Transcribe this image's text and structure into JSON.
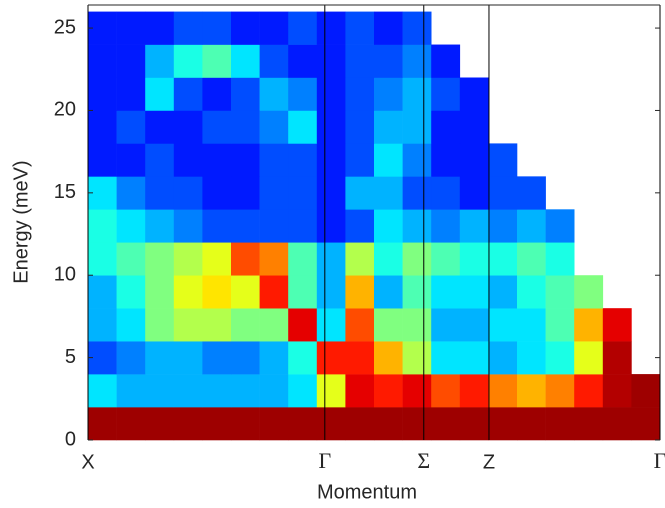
{
  "chart_data": {
    "type": "heatmap",
    "colormap": "jet",
    "zlim": [
      0,
      1
    ],
    "x_label": "Momentum",
    "y_label": "Energy (meV)",
    "xlim": [
      0,
      1
    ],
    "ylim": [
      0,
      26.4
    ],
    "xticks": [
      {
        "value": 0,
        "label": "X"
      },
      {
        "value": 0.414,
        "label": "Γ"
      },
      {
        "value": 0.587,
        "label": "Σ"
      },
      {
        "value": 0.701,
        "label": "Z"
      },
      {
        "value": 1,
        "label": "Γ"
      }
    ],
    "yticks": [
      0,
      5,
      10,
      15,
      20,
      25
    ],
    "x_bins": [
      0,
      0.05,
      0.1,
      0.15,
      0.2,
      0.25,
      0.3,
      0.35,
      0.4,
      0.45,
      0.5,
      0.55,
      0.6,
      0.65,
      0.7,
      0.75,
      0.8,
      0.85,
      0.9,
      0.95,
      1
    ],
    "y_bins": [
      0,
      2,
      4,
      6,
      8,
      10,
      12,
      14,
      16,
      18,
      20,
      22,
      24,
      26
    ],
    "z": [
      [
        0.97,
        0.97,
        0.97,
        0.97,
        0.97,
        0.97,
        0.97,
        0.97,
        0.97,
        0.97,
        0.97,
        0.97,
        0.97,
        0.97,
        0.97,
        0.97,
        0.97,
        0.97,
        0.97,
        0.97
      ],
      [
        0.35,
        0.3,
        0.3,
        0.3,
        0.3,
        0.3,
        0.3,
        0.35,
        0.6,
        0.9,
        0.85,
        0.9,
        0.8,
        0.85,
        0.75,
        0.7,
        0.75,
        0.85,
        0.95,
        0.97
      ],
      [
        0.2,
        0.25,
        0.3,
        0.3,
        0.25,
        0.25,
        0.3,
        0.4,
        0.85,
        0.85,
        0.7,
        0.55,
        0.35,
        0.35,
        0.3,
        0.35,
        0.4,
        0.6,
        0.95,
        null
      ],
      [
        0.3,
        0.35,
        0.5,
        0.55,
        0.55,
        0.5,
        0.5,
        0.9,
        0.35,
        0.8,
        0.5,
        0.5,
        0.3,
        0.3,
        0.35,
        0.35,
        0.45,
        0.7,
        0.9,
        null
      ],
      [
        0.3,
        0.4,
        0.5,
        0.6,
        0.65,
        0.6,
        0.85,
        0.45,
        0.3,
        0.7,
        0.3,
        0.45,
        0.35,
        0.35,
        0.3,
        0.4,
        0.45,
        0.5,
        null,
        null
      ],
      [
        0.4,
        0.45,
        0.5,
        0.55,
        0.6,
        0.8,
        0.75,
        0.45,
        0.3,
        0.55,
        0.4,
        0.5,
        0.45,
        0.4,
        0.4,
        0.45,
        0.4,
        null,
        null,
        null
      ],
      [
        0.4,
        0.35,
        0.3,
        0.25,
        0.2,
        0.2,
        0.2,
        0.2,
        0.15,
        0.2,
        0.35,
        0.3,
        0.25,
        0.3,
        0.25,
        0.3,
        0.25,
        null,
        null,
        null
      ],
      [
        0.35,
        0.25,
        0.2,
        0.2,
        0.15,
        0.15,
        0.2,
        0.2,
        0.15,
        0.3,
        0.3,
        0.2,
        0.2,
        0.15,
        0.2,
        0.2,
        null,
        null,
        null,
        null
      ],
      [
        0.15,
        0.15,
        0.2,
        0.15,
        0.15,
        0.15,
        0.2,
        0.2,
        0.15,
        0.2,
        0.35,
        0.25,
        0.15,
        0.15,
        0.2,
        null,
        null,
        null,
        null,
        null
      ],
      [
        0.15,
        0.2,
        0.15,
        0.15,
        0.2,
        0.2,
        0.25,
        0.35,
        0.15,
        0.2,
        0.3,
        0.3,
        0.15,
        0.15,
        null,
        null,
        null,
        null,
        null,
        null
      ],
      [
        0.15,
        0.15,
        0.35,
        0.2,
        0.15,
        0.2,
        0.3,
        0.25,
        0.15,
        0.2,
        0.25,
        0.3,
        0.2,
        0.15,
        null,
        null,
        null,
        null,
        null,
        null
      ],
      [
        0.15,
        0.15,
        0.3,
        0.4,
        0.45,
        0.35,
        0.2,
        0.15,
        0.15,
        0.2,
        0.2,
        0.25,
        0.15,
        null,
        null,
        null,
        null,
        null,
        null,
        null
      ],
      [
        0.15,
        0.15,
        0.15,
        0.2,
        0.2,
        0.15,
        0.15,
        0.2,
        0.15,
        0.2,
        0.15,
        0.2,
        null,
        null,
        null,
        null,
        null,
        null,
        null,
        null
      ]
    ]
  }
}
